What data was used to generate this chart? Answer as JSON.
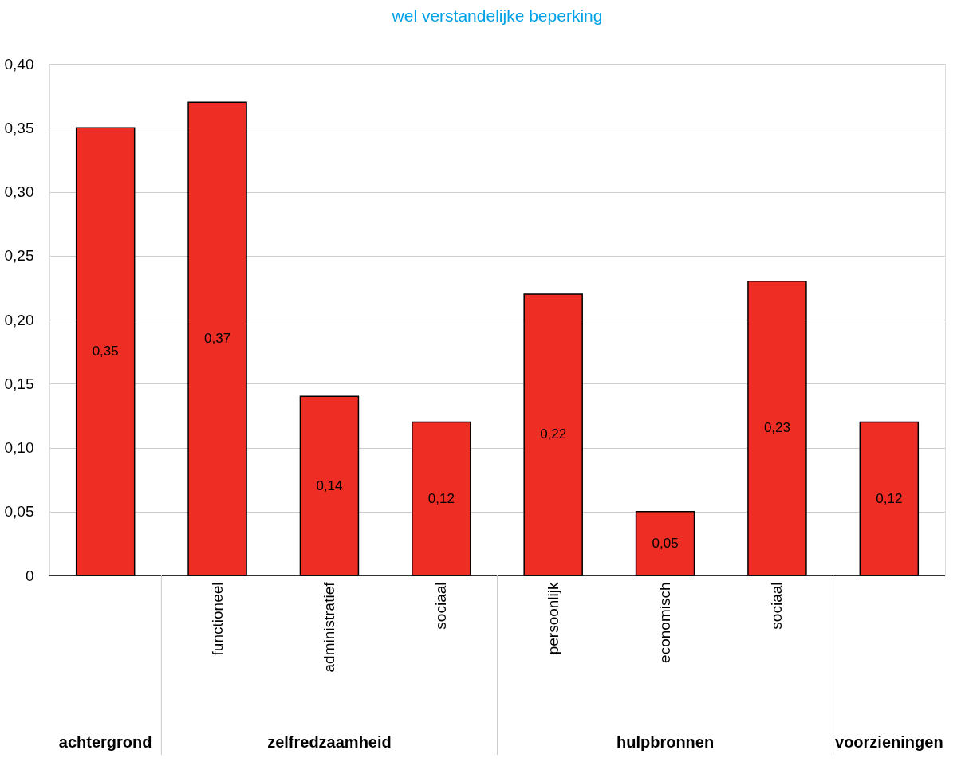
{
  "chart_data": {
    "type": "bar",
    "title": "wel verstandelijke beperking",
    "categories": [
      null,
      "functioneel",
      "administratief",
      "sociaal",
      "persoonlijk",
      "economisch",
      "sociaal",
      null
    ],
    "values": [
      0.35,
      0.37,
      0.14,
      0.12,
      0.22,
      0.05,
      0.23,
      0.12
    ],
    "value_labels": [
      "0,35",
      "0,37",
      "0,14",
      "0,12",
      "0,22",
      "0,05",
      "0,23",
      "0,12"
    ],
    "color": "#ee2e24",
    "ylim": [
      0,
      0.4
    ],
    "yticks": [
      0,
      {
        "value": 0.05,
        "label": "0,05"
      },
      {
        "value": 0.1,
        "label": "0,10"
      },
      {
        "value": 0.15,
        "label": "0,15"
      },
      {
        "value": 0.2,
        "label": "0,20"
      },
      {
        "value": 0.25,
        "label": "0,25"
      },
      {
        "value": 0.3,
        "label": "0,30"
      },
      {
        "value": 0.35,
        "label": "0,35"
      },
      {
        "value": 0.4,
        "label": "0,40"
      }
    ],
    "grid": "y",
    "annotations": [
      "achtergrond",
      "zelfredzaamheid",
      "hulpbronnen",
      "voorzieningen"
    ]
  }
}
